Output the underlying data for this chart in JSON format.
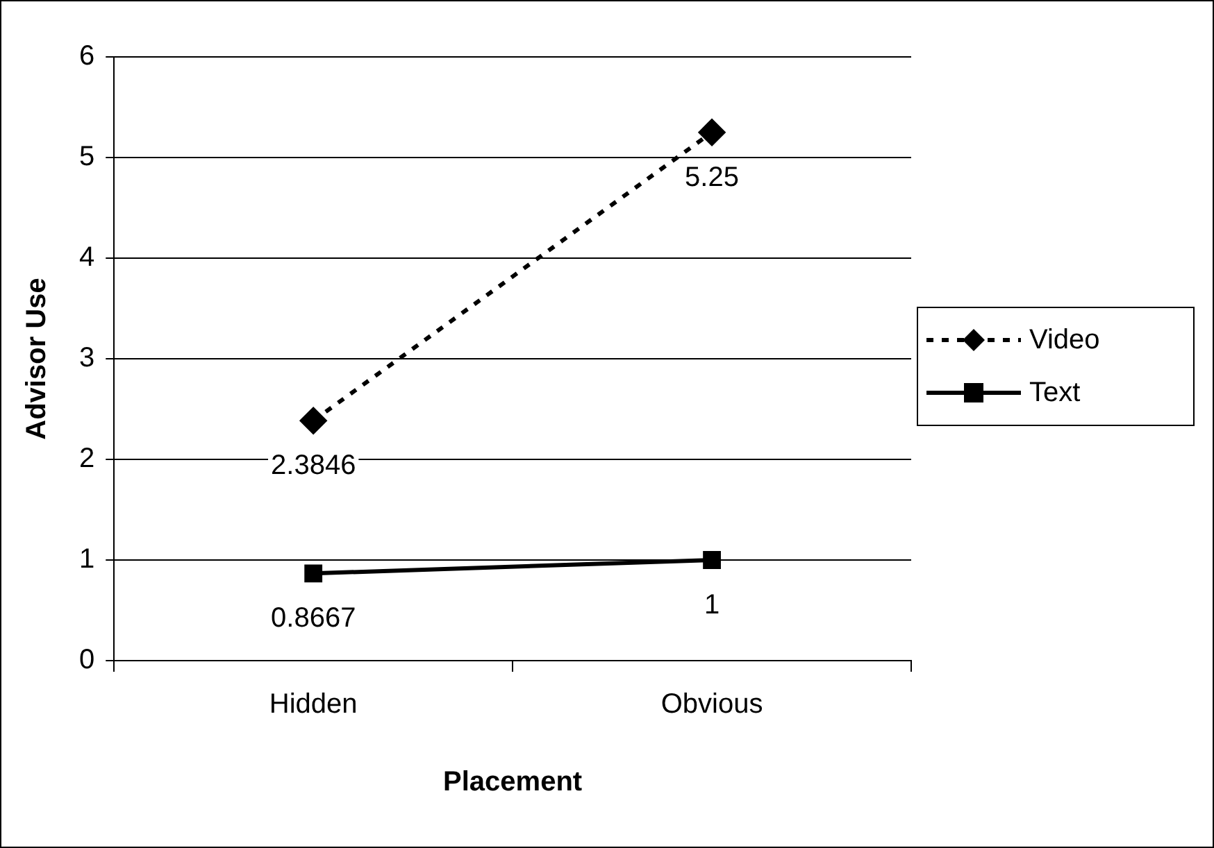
{
  "chart_data": {
    "type": "line",
    "xlabel": "Placement",
    "ylabel": "Advisor Use",
    "categories": [
      "Hidden",
      "Obvious"
    ],
    "series": [
      {
        "name": "Video",
        "color": "#000000",
        "values": [
          2.3846,
          5.25
        ],
        "line_style": "dotted",
        "marker": "diamond"
      },
      {
        "name": "Text",
        "color": "#000000",
        "values": [
          0.8667,
          1
        ],
        "line_style": "solid",
        "marker": "square"
      }
    ],
    "ylim": [
      0,
      6
    ],
    "yticks": [
      0,
      1,
      2,
      3,
      4,
      5,
      6
    ],
    "grid": "y",
    "legend": "right",
    "data_labels": true
  }
}
